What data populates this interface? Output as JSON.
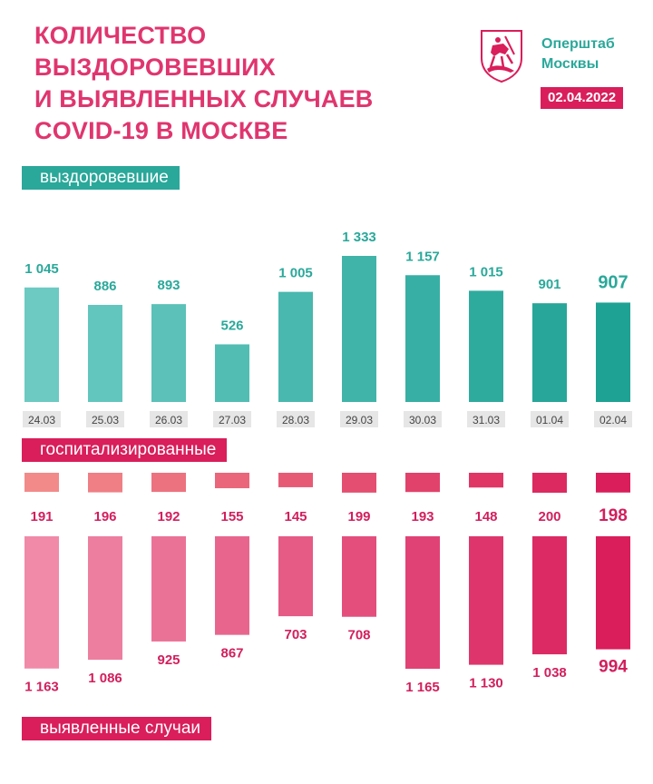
{
  "header": {
    "title_lines": [
      "КОЛИЧЕСТВО ВЫЗДОРОВЕВШИХ",
      "И ВЫЯВЛЕННЫХ СЛУЧАЕВ",
      "COVID-19 В МОСКВЕ"
    ],
    "brand_lines": [
      "Оперштаб",
      "Москвы"
    ],
    "date": "02.04.2022",
    "logo_icon": "moscow-coat-of-arms-icon"
  },
  "labels": {
    "recovered": "выздоровевшие",
    "hospitalized": "госпитализированные",
    "detected": "выявленные случаи"
  },
  "colors": {
    "title": "#e0356f",
    "brand": "#2aa89a",
    "teal_light": "#6ccac3",
    "teal_dark": "#1ea294",
    "pink_light": "#f08aa8",
    "pink_dark": "#d91e5b",
    "hosp_light": "#f28a8a",
    "tick_bg": "#e6e6e6",
    "value_teal": "#2aa89a",
    "value_pink": "#d21f5d"
  },
  "chart_data": [
    {
      "type": "bar",
      "categories": [
        "24.03",
        "25.03",
        "26.03",
        "27.03",
        "28.03",
        "29.03",
        "30.03",
        "31.03",
        "01.04",
        "02.04"
      ],
      "values": [
        1045,
        886,
        893,
        526,
        1005,
        1333,
        1157,
        1015,
        901,
        907
      ],
      "value_labels": [
        "1 045",
        "886",
        "893",
        "526",
        "1 005",
        "1 333",
        "1 157",
        "1 015",
        "901",
        "907"
      ],
      "title": "выздоровевшие",
      "ylim": [
        0,
        1400
      ]
    },
    {
      "type": "bar",
      "categories": [
        "24.03",
        "25.03",
        "26.03",
        "27.03",
        "28.03",
        "29.03",
        "30.03",
        "31.03",
        "01.04",
        "02.04"
      ],
      "values": [
        191,
        196,
        192,
        155,
        145,
        199,
        193,
        148,
        200,
        198
      ],
      "value_labels": [
        "191",
        "196",
        "192",
        "155",
        "145",
        "199",
        "193",
        "148",
        "200",
        "198"
      ],
      "title": "госпитализированные",
      "ylim": [
        0,
        200
      ]
    },
    {
      "type": "bar",
      "categories": [
        "24.03",
        "25.03",
        "26.03",
        "27.03",
        "28.03",
        "29.03",
        "30.03",
        "31.03",
        "01.04",
        "02.04"
      ],
      "values": [
        1163,
        1086,
        925,
        867,
        703,
        708,
        1165,
        1130,
        1038,
        994
      ],
      "value_labels": [
        "1 163",
        "1 086",
        "925",
        "867",
        "703",
        "708",
        "1 165",
        "1 130",
        "1 038",
        "994"
      ],
      "title": "выявленные случаи",
      "ylim": [
        0,
        1165
      ]
    }
  ]
}
